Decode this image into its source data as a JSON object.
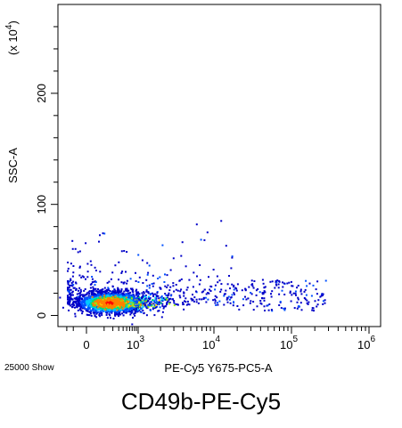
{
  "chart_data": {
    "type": "scatter",
    "subtype": "flow-cytometry-density-dot-plot",
    "title": "CD49b-PE-Cy5",
    "xlabel": "PE-Cy5 Y675-PC5-A",
    "ylabel": "SSC-A",
    "y_multiplier_label": "(x 10",
    "y_multiplier_exponent": "4",
    "y_multiplier_close": ")",
    "event_count_label": "25000 Show",
    "x_scale": "biexponential",
    "y_scale": "linear",
    "ylim": [
      -10,
      280
    ],
    "x_ticks": [
      {
        "value": 0,
        "label": "0",
        "sup": ""
      },
      {
        "value": 1000,
        "label": "10",
        "sup": "3"
      },
      {
        "value": 10000,
        "label": "10",
        "sup": "4"
      },
      {
        "value": 100000,
        "label": "10",
        "sup": "5"
      },
      {
        "value": 1000000,
        "label": "10",
        "sup": "6"
      }
    ],
    "y_ticks": [
      {
        "value": 0,
        "label": "0"
      },
      {
        "value": 100,
        "label": "100"
      },
      {
        "value": 200,
        "label": "200"
      }
    ],
    "population": {
      "description": "dense cluster near zero fluorescence with a sparse tail toward high intensity",
      "center_x": 150,
      "center_y": 12,
      "events_shown": 25000
    },
    "colormap": [
      "#0000c8",
      "#0050ff",
      "#00c8ff",
      "#00e070",
      "#a0f000",
      "#ffe000",
      "#ff8000",
      "#ff0000"
    ],
    "grid": false
  }
}
